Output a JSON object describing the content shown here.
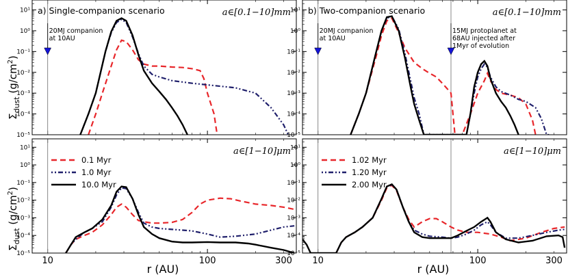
{
  "figure": {
    "ylabel": "Σdust (g/cm²)",
    "xlabel": "r (AU)",
    "xticks": [
      10,
      100,
      300
    ],
    "yticks": [
      "10^-5",
      "10^-4",
      "10^-3",
      "10^-2",
      "10^-1",
      "10^0",
      "10^1"
    ]
  },
  "chart_data": [
    {
      "panel": "top-left",
      "type": "line",
      "title": "a) Single-companion scenario",
      "size_range": "a∈[0.1−10]mm",
      "xlim": [
        8,
        360
      ],
      "ylim": [
        1e-05,
        30
      ],
      "xscale": "log",
      "yscale": "log",
      "annotations": [
        {
          "text": "20MJ companion",
          "text2": "at 10AU",
          "x": 10
        }
      ],
      "series": [
        {
          "name": "0.1 Myr",
          "style": "dashed",
          "color": "#e8262a",
          "x": [
            18,
            20,
            22,
            25,
            27,
            29,
            31,
            34,
            37,
            40,
            45,
            50,
            60,
            70,
            80,
            90,
            95,
            100,
            110,
            115
          ],
          "y": [
            1e-05,
            0.0001,
            0.001,
            0.02,
            0.12,
            0.35,
            0.3,
            0.12,
            0.04,
            0.025,
            0.02,
            0.02,
            0.018,
            0.017,
            0.015,
            0.012,
            0.005,
            0.001,
            0.0001,
            1e-05
          ]
        },
        {
          "name": "1.0 Myr",
          "style": "dashdot",
          "color": "#1f1f6b",
          "x": [
            16,
            18,
            20,
            23,
            25,
            27,
            29,
            31,
            34,
            37,
            40,
            45,
            50,
            60,
            80,
            100,
            150,
            200,
            250,
            300,
            320
          ],
          "y": [
            1e-05,
            0.0001,
            0.001,
            0.1,
            0.8,
            2.5,
            3.5,
            2.5,
            0.5,
            0.08,
            0.02,
            0.008,
            0.006,
            0.004,
            0.003,
            0.0025,
            0.0018,
            0.001,
            0.0002,
            3e-05,
            1e-05
          ]
        },
        {
          "name": "10.0 Myr",
          "style": "solid",
          "color": "#000000",
          "x": [
            16,
            18,
            20,
            23,
            25,
            27,
            29,
            31,
            34,
            37,
            40,
            45,
            50,
            55,
            60,
            65,
            70,
            75
          ],
          "y": [
            1e-05,
            0.0001,
            0.001,
            0.1,
            0.9,
            3,
            4,
            3,
            0.6,
            0.07,
            0.012,
            0.003,
            0.0012,
            0.0005,
            0.0002,
            8e-05,
            3e-05,
            1e-05
          ]
        }
      ]
    },
    {
      "panel": "top-right",
      "type": "line",
      "title": "b) Two-companion scenario",
      "size_range": "a∈[0.1−10]mm",
      "xlim": [
        8,
        360
      ],
      "ylim": [
        1e-05,
        30
      ],
      "xscale": "log",
      "yscale": "log",
      "annotations": [
        {
          "text": "20MJ companion",
          "text2": "at 10AU",
          "x": 10
        },
        {
          "text": "15MJ protoplanet at",
          "text2": "68AU injected after",
          "text3": "1Myr of evolution",
          "x": 68
        }
      ],
      "series": [
        {
          "name": "1.02 Myr",
          "style": "dashed",
          "color": "#e8262a",
          "x": [
            16,
            18,
            20,
            23,
            25,
            27,
            29,
            32,
            35,
            40,
            45,
            50,
            55,
            60,
            65,
            68,
            70,
            72,
            80,
            90,
            100,
            110,
            115,
            120,
            130,
            140,
            160,
            180,
            200,
            220,
            230
          ],
          "y": [
            1e-05,
            0.0001,
            0.001,
            0.05,
            0.6,
            3,
            4,
            0.8,
            0.15,
            0.03,
            0.015,
            0.009,
            0.006,
            0.003,
            0.0015,
            0.001,
            0.0001,
            1e-05,
            1e-05,
            0.0001,
            0.001,
            0.004,
            0.009,
            0.004,
            0.0015,
            0.001,
            0.0008,
            0.0006,
            0.0003,
            5e-05,
            1e-05
          ]
        },
        {
          "name": "1.20 Myr",
          "style": "dashdot",
          "color": "#1f1f6b",
          "x": [
            16,
            18,
            20,
            23,
            25,
            27,
            29,
            32,
            35,
            38,
            40,
            43,
            46,
            50,
            85,
            90,
            95,
            100,
            105,
            110,
            115,
            120,
            130,
            140,
            160,
            180,
            200,
            230,
            250,
            270,
            280
          ],
          "y": [
            1e-05,
            0.0001,
            0.001,
            0.08,
            1,
            4,
            5,
            1.2,
            0.08,
            0.004,
            0.0006,
            0.0001,
            1e-05,
            1e-05,
            1e-05,
            0.0001,
            0.001,
            0.006,
            0.015,
            0.025,
            0.018,
            0.006,
            0.002,
            0.0012,
            0.0008,
            0.0005,
            0.0004,
            0.0002,
            6e-05,
            1e-05,
            1e-05
          ]
        },
        {
          "name": "2.00 Myr",
          "style": "solid",
          "color": "#000000",
          "x": [
            16,
            18,
            20,
            23,
            25,
            27,
            29,
            32,
            35,
            38,
            40,
            43,
            46,
            85,
            90,
            95,
            100,
            105,
            110,
            115,
            120,
            130,
            140,
            150,
            160,
            170,
            180
          ],
          "y": [
            1e-05,
            0.0001,
            0.001,
            0.08,
            1,
            4.5,
            5,
            1,
            0.05,
            0.002,
            0.0003,
            5e-05,
            1e-05,
            1e-05,
            0.0001,
            0.002,
            0.01,
            0.025,
            0.035,
            0.02,
            0.005,
            0.001,
            0.0004,
            0.0002,
            8e-05,
            3e-05,
            1e-05
          ]
        }
      ]
    },
    {
      "panel": "bottom-left",
      "type": "line",
      "size_range": "a∈[1−10]μm",
      "xlim": [
        8,
        360
      ],
      "ylim": [
        1e-05,
        30
      ],
      "xscale": "log",
      "yscale": "log",
      "legend": {
        "placement": "top-left",
        "entries": [
          "0.1 Myr",
          "1.0 Myr",
          "10.0 Myr"
        ]
      },
      "series": [
        {
          "name": "0.1 Myr",
          "style": "dashed",
          "color": "#e8262a",
          "x": [
            13,
            14,
            15,
            17,
            19,
            22,
            25,
            27,
            29,
            31,
            34,
            37,
            40,
            45,
            50,
            60,
            70,
            80,
            90,
            100,
            120,
            140,
            160,
            200,
            250,
            300,
            350
          ],
          "y": [
            1e-05,
            3e-05,
            6e-05,
            0.0001,
            0.00015,
            0.0004,
            0.0015,
            0.004,
            0.006,
            0.004,
            0.0015,
            0.0007,
            0.0006,
            0.0005,
            0.0005,
            0.00055,
            0.0008,
            0.002,
            0.006,
            0.01,
            0.013,
            0.012,
            0.009,
            0.006,
            0.005,
            0.004,
            0.003
          ]
        },
        {
          "name": "1.0 Myr",
          "style": "dashdot",
          "color": "#1f1f6b",
          "x": [
            13,
            14,
            15,
            17,
            19,
            22,
            25,
            27,
            29,
            31,
            34,
            37,
            40,
            45,
            50,
            60,
            70,
            80,
            100,
            120,
            150,
            200,
            250,
            300,
            350
          ],
          "y": [
            1e-05,
            3e-05,
            6e-05,
            0.00015,
            0.00025,
            0.0006,
            0.004,
            0.02,
            0.05,
            0.045,
            0.012,
            0.002,
            0.0005,
            0.0003,
            0.00025,
            0.00022,
            0.0002,
            0.00018,
            0.00012,
            8e-05,
            9e-05,
            0.00012,
            0.0002,
            0.0003,
            0.00035
          ]
        },
        {
          "name": "10.0 Myr",
          "style": "solid",
          "color": "#000000",
          "x": [
            13,
            14,
            15,
            17,
            19,
            22,
            25,
            27,
            29,
            31,
            34,
            37,
            40,
            45,
            50,
            60,
            70,
            80,
            100,
            120,
            150,
            180,
            200,
            250,
            300,
            350
          ],
          "y": [
            1e-05,
            3e-05,
            8e-05,
            0.00015,
            0.00025,
            0.0008,
            0.005,
            0.03,
            0.06,
            0.055,
            0.012,
            0.0015,
            0.0003,
            0.00012,
            7e-05,
            4.5e-05,
            4e-05,
            4e-05,
            4.2e-05,
            4e-05,
            4e-05,
            3.5e-05,
            3e-05,
            2e-05,
            1.5e-05,
            1e-05
          ]
        }
      ]
    },
    {
      "panel": "bottom-right",
      "type": "line",
      "size_range": "a∈[1−10]μm",
      "xlim": [
        8,
        360
      ],
      "ylim": [
        1e-05,
        30
      ],
      "xscale": "log",
      "yscale": "log",
      "legend": {
        "placement": "top-left",
        "entries": [
          "1.02 Myr",
          "1.20 Myr",
          "2.00 Myr"
        ]
      },
      "series": [
        {
          "name": "1.02 Myr",
          "style": "dashed",
          "color": "#e8262a",
          "x": [
            13,
            14,
            15,
            17,
            19,
            22,
            25,
            27,
            29,
            31,
            34,
            37,
            40,
            45,
            50,
            55,
            60,
            68,
            75,
            85,
            100,
            120,
            140,
            160,
            200,
            250,
            300,
            350
          ],
          "y": [
            1e-05,
            4e-05,
            8e-05,
            0.00015,
            0.0003,
            0.001,
            0.01,
            0.05,
            0.07,
            0.035,
            0.004,
            0.0008,
            0.0003,
            0.0006,
            0.0009,
            0.0009,
            0.0006,
            0.0003,
            0.0002,
            0.00015,
            0.00015,
            0.00012,
            8e-05,
            5e-05,
            7e-05,
            0.00015,
            0.00025,
            0.0003
          ]
        },
        {
          "name": "1.20 Myr",
          "style": "dashdot",
          "color": "#1f1f6b",
          "x": [
            13,
            14,
            15,
            17,
            19,
            22,
            25,
            27,
            29,
            31,
            34,
            37,
            40,
            45,
            50,
            60,
            68,
            75,
            85,
            95,
            105,
            115,
            120,
            130,
            150,
            180,
            220,
            270,
            320,
            350
          ],
          "y": [
            1e-05,
            4e-05,
            8e-05,
            0.00015,
            0.0003,
            0.001,
            0.012,
            0.06,
            0.075,
            0.04,
            0.004,
            0.0006,
            0.0002,
            0.00012,
            9e-05,
            8e-05,
            7e-05,
            8e-05,
            0.00012,
            0.0002,
            0.0004,
            0.0006,
            0.0004,
            0.00015,
            7e-05,
            7e-05,
            0.0001,
            0.00015,
            0.0002,
            0.00022
          ]
        },
        {
          "name": "2.00 Myr",
          "style": "solid",
          "color": "#000000",
          "x": [
            8,
            8.5,
            9,
            10,
            11,
            12,
            13,
            14,
            15,
            17,
            19,
            22,
            25,
            27,
            29,
            31,
            34,
            37,
            40,
            45,
            50,
            60,
            68,
            75,
            85,
            95,
            105,
            115,
            120,
            130,
            150,
            180,
            220,
            270,
            320,
            340,
            350
          ],
          "y": [
            6e-05,
            3e-05,
            1e-05,
            1e-05,
            1e-05,
            1e-05,
            1e-05,
            4e-05,
            8e-05,
            0.00015,
            0.0003,
            0.001,
            0.012,
            0.06,
            0.08,
            0.04,
            0.004,
            0.0006,
            0.00015,
            8e-05,
            7e-05,
            7e-05,
            7e-05,
            0.0001,
            0.00018,
            0.0003,
            0.0006,
            0.001,
            0.0006,
            0.00015,
            6e-05,
            4e-05,
            5e-05,
            9e-05,
            0.0001,
            8e-05,
            2e-05
          ]
        }
      ]
    }
  ]
}
